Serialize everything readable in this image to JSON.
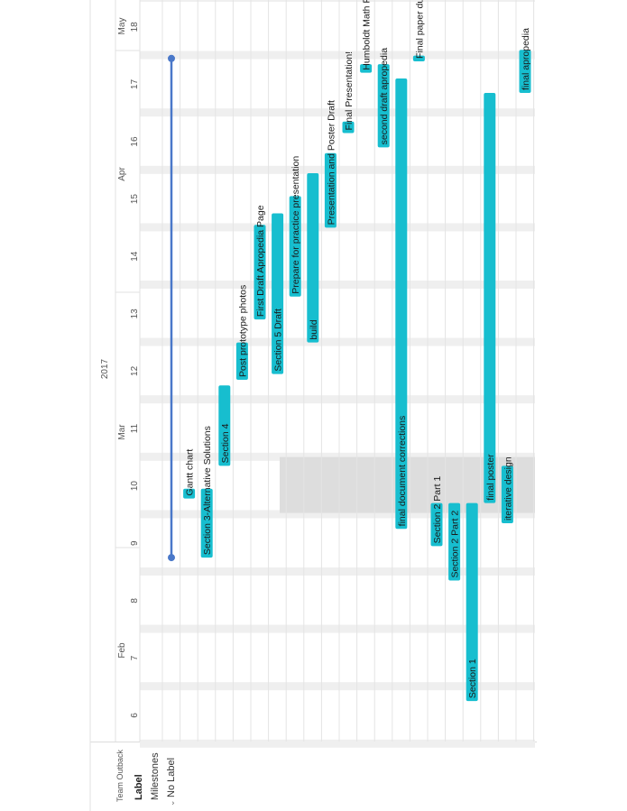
{
  "left_panel": {
    "team": "Team Outback",
    "label_header": "Label",
    "milestones": "Milestones",
    "no_label": "No Label",
    "chevron_icon": "chevron-down-icon"
  },
  "timeline": {
    "year": "2017",
    "months": [
      "Feb",
      "Mar",
      "Apr",
      "May"
    ],
    "weeks": [
      "6",
      "7",
      "8",
      "9",
      "10",
      "11",
      "12",
      "13",
      "14",
      "15",
      "16",
      "17",
      "18"
    ],
    "highlighted_week": "10"
  },
  "milestone": {
    "start_week": 8.75,
    "end_week": 17.45,
    "color": "#4a78c9"
  },
  "colors": {
    "bar": "#17becf",
    "milestone_line": "#4a78c9",
    "highlight": "#dddddd"
  },
  "chart_data": {
    "type": "gantt",
    "x_unit": "week of 2017",
    "tasks": [
      {
        "name": "Gantt chart",
        "start": 9.78,
        "end": 9.95
      },
      {
        "name": "Section 3-Alternative Solutions",
        "start": 8.75,
        "end": 9.95
      },
      {
        "name": "Section 4",
        "start": 10.35,
        "end": 11.75
      },
      {
        "name": "Post prototype photos",
        "start": 11.85,
        "end": 12.5
      },
      {
        "name": "First Draft Apropedia Page",
        "start": 12.9,
        "end": 14.55
      },
      {
        "name": "Section 5 Draft",
        "start": 11.95,
        "end": 14.75
      },
      {
        "name": "Prepare for practice presentation",
        "start": 13.3,
        "end": 15.05
      },
      {
        "name": "build",
        "start": 12.5,
        "end": 15.45
      },
      {
        "name": "Presentation and Poster Draft",
        "start": 14.5,
        "end": 15.8
      },
      {
        "name": "Final Presentation!",
        "start": 16.15,
        "end": 16.35
      },
      {
        "name": "Humboldt Math Fair",
        "start": 17.2,
        "end": 17.35
      },
      {
        "name": "second draft apropedia",
        "start": 15.9,
        "end": 17.35
      },
      {
        "name": "final document corrections",
        "start": 9.25,
        "end": 17.1
      },
      {
        "name": "Final paper due",
        "start": 17.4,
        "end": 17.5
      },
      {
        "name": "Section 2 Part 1",
        "start": 8.95,
        "end": 9.7
      },
      {
        "name": "Section 2 Part 2",
        "start": 8.35,
        "end": 9.7
      },
      {
        "name": "Section 1",
        "start": 6.25,
        "end": 9.7
      },
      {
        "name": "final poster",
        "start": 9.7,
        "end": 16.85
      },
      {
        "name": "iterative design",
        "start": 9.35,
        "end": 10.35
      },
      {
        "name": "final apropedia",
        "start": 16.85,
        "end": 17.6
      }
    ]
  }
}
